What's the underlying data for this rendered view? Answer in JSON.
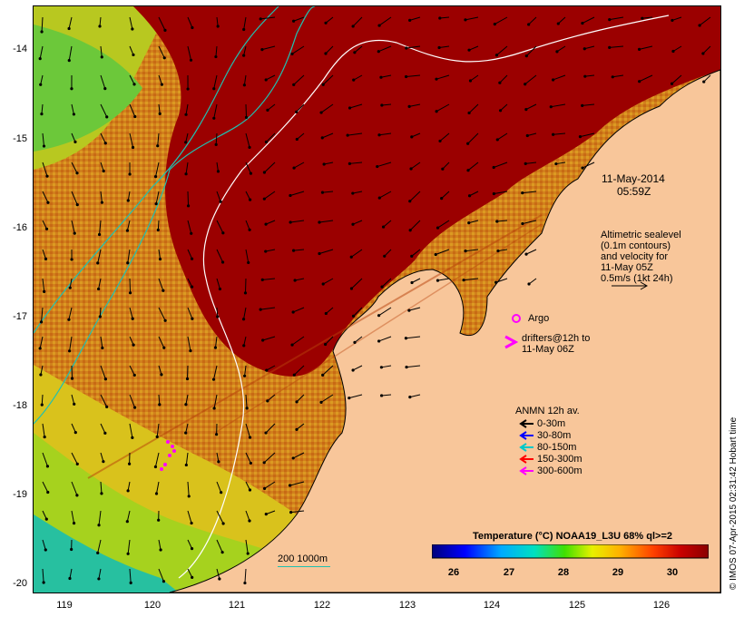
{
  "map": {
    "y_ticks": [
      "-14",
      "-15",
      "-16",
      "-17",
      "-18",
      "-19",
      "-20"
    ],
    "x_ticks": [
      "119",
      "120",
      "121",
      "122",
      "123",
      "124",
      "125",
      "126"
    ],
    "date_line1": "11-May-2014",
    "date_line2": "05:59Z",
    "altimetry": {
      "line1": "Altimetric sealevel",
      "line2": "(0.1m contours)",
      "line3": "and velocity for",
      "line4": "11-May 05Z",
      "line5": "0.5m/s (1kt 24h)"
    },
    "argo_label": "Argo",
    "drifters_line1": "drifters@12h to",
    "drifters_line2": "11-May 06Z",
    "anmn": {
      "title": "ANMN 12h av.",
      "items": [
        {
          "label": "0-30m",
          "color": "#000000"
        },
        {
          "label": "30-80m",
          "color": "#0000ff"
        },
        {
          "label": "80-150m",
          "color": "#00c8c8"
        },
        {
          "label": "150-300m",
          "color": "#ff0000"
        },
        {
          "label": "300-600m",
          "color": "#ff00ff"
        }
      ]
    },
    "isobath_label": "200  1000m",
    "colorbar": {
      "title": "Temperature (°C) NOAA19_L3U 68% ql>=2",
      "ticks": [
        "26",
        "27",
        "28",
        "29",
        "30"
      ]
    },
    "credit": "© IMOS 07-Apr-2015 02:31:42 Hobart time",
    "colors": {
      "land": "#f8c69a",
      "warm_sea": "#9b0000",
      "cool_sea": "#d48a1a",
      "argo": "#ff00ff"
    }
  }
}
